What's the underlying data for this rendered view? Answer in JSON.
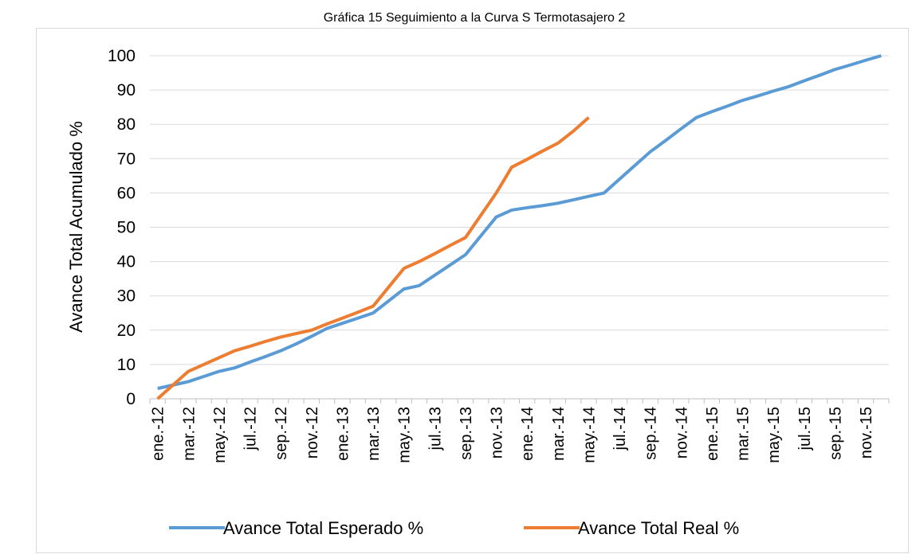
{
  "chart_data": {
    "type": "line",
    "title": "Gráfica 15 Seguimiento a la Curva S Termotasajero 2",
    "y_label": "Avance Total Acumulado %",
    "categories": [
      "ene.-12",
      null,
      "mar.-12",
      null,
      "may.-12",
      null,
      "jul.-12",
      null,
      "sep.-12",
      null,
      "nov.-12",
      null,
      "ene.-13",
      null,
      "mar.-13",
      null,
      "may.-13",
      null,
      "jul.-13",
      null,
      "sep.-13",
      null,
      "nov.-13",
      null,
      "ene.-14",
      null,
      "mar.-14",
      null,
      "may.-14",
      null,
      "jul.-14",
      null,
      "sep.-14",
      null,
      "nov.-14",
      null,
      "ene.-15",
      null,
      "mar.-15",
      null,
      "may.-15",
      null,
      "jul.-15",
      null,
      "sep.-15",
      null,
      "nov.-15",
      null
    ],
    "series": [
      {
        "name": "Avance Total Esperado %",
        "color": "#5b9bd5",
        "values": [
          3,
          4,
          5,
          6.5,
          8,
          9,
          10.7,
          12.3,
          14,
          16,
          18.2,
          20.5,
          22,
          23.5,
          25,
          28.5,
          32,
          33,
          36,
          39,
          42,
          47.5,
          53,
          55,
          55.7,
          56.3,
          57,
          58,
          59,
          60,
          64,
          68,
          72,
          75.3,
          78.7,
          82,
          83.7,
          85.3,
          87,
          88.3,
          89.7,
          91,
          92.7,
          94.3,
          96,
          97.3,
          98.7,
          100
        ]
      },
      {
        "name": "Avance Total Real %",
        "color": "#ed7d31",
        "values": [
          0,
          4,
          8,
          10,
          12,
          14,
          15.3,
          16.7,
          18,
          19,
          20,
          21.8,
          23.5,
          25.2,
          27,
          32.5,
          38,
          40,
          42.3,
          44.7,
          47,
          53.5,
          60,
          67.5,
          69.8,
          72.2,
          74.5,
          78,
          82,
          null,
          null,
          null,
          null,
          null,
          null,
          null,
          null,
          null,
          null,
          null,
          null,
          null,
          null,
          null,
          null,
          null,
          null,
          null
        ]
      }
    ],
    "ylim": [
      0,
      100
    ],
    "yticks": [
      0,
      10,
      20,
      30,
      40,
      50,
      60,
      70,
      80,
      90,
      100
    ],
    "grid": true,
    "legend": "bottom"
  }
}
